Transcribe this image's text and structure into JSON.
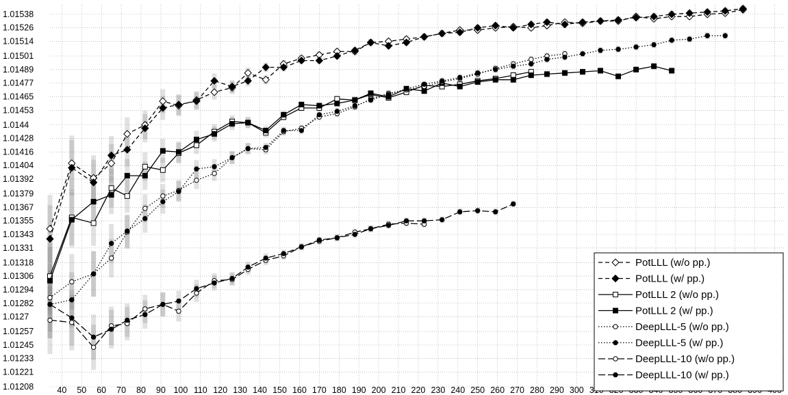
{
  "chart_data": {
    "type": "line",
    "title": "",
    "xlabel": "",
    "ylabel": "",
    "grid": true,
    "legend_position": "bottom-right",
    "x_ticks": [
      40,
      50,
      60,
      70,
      80,
      90,
      100,
      110,
      120,
      130,
      140,
      150,
      160,
      170,
      180,
      190,
      200,
      210,
      220,
      230,
      240,
      250,
      260,
      270,
      280,
      290,
      300,
      310,
      320,
      330,
      340,
      350,
      360,
      370,
      380,
      390,
      400
    ],
    "y_ticks": [
      "1.01208",
      "1.01221",
      "1.01233",
      "1.01245",
      "1.01257",
      "1.0127",
      "1.01282",
      "1.01294",
      "1.01306",
      "1.01318",
      "1.01331",
      "1.01343",
      "1.01355",
      "1.01367",
      "1.01379",
      "1.01392",
      "1.01404",
      "1.01416",
      "1.01428",
      "1.0144",
      "1.01453",
      "1.01465",
      "1.01477",
      "1.01489",
      "1.01501",
      "1.01514",
      "1.01526",
      "1.01538"
    ],
    "xlim": [
      34,
      405
    ],
    "ylim": [
      1.01208,
      1.01547
    ],
    "series": [
      {
        "name": "PotLLL (w/o pp.)",
        "dash": "6,4",
        "marker": "diamond-open",
        "points": [
          [
            34,
            1.01348
          ],
          [
            45,
            1.01406
          ],
          [
            56,
            1.01393
          ],
          [
            65,
            1.01406
          ],
          [
            73,
            1.01432
          ],
          [
            82,
            1.0144
          ],
          [
            91,
            1.01461
          ],
          [
            99,
            1.01457
          ],
          [
            108,
            1.01462
          ],
          [
            117,
            1.01469
          ],
          [
            126,
            1.01473
          ],
          [
            134,
            1.01486
          ],
          [
            143,
            1.0148
          ],
          [
            152,
            1.01494
          ],
          [
            161,
            1.01499
          ],
          [
            170,
            1.01502
          ],
          [
            179,
            1.01505
          ],
          [
            188,
            1.01505
          ],
          [
            196,
            1.01513
          ],
          [
            205,
            1.01514
          ],
          [
            214,
            1.01516
          ],
          [
            223,
            1.01518
          ],
          [
            232,
            1.01521
          ],
          [
            241,
            1.01524
          ],
          [
            250,
            1.01524
          ],
          [
            259,
            1.01526
          ],
          [
            268,
            1.01527
          ],
          [
            277,
            1.01526
          ],
          [
            285,
            1.01528
          ],
          [
            294,
            1.01531
          ],
          [
            303,
            1.0153
          ],
          [
            312,
            1.01532
          ],
          [
            321,
            1.01532
          ],
          [
            330,
            1.01536
          ],
          [
            339,
            1.01534
          ],
          [
            348,
            1.01536
          ],
          [
            357,
            1.01536
          ],
          [
            366,
            1.01538
          ],
          [
            375,
            1.01539
          ],
          [
            384,
            1.01542
          ]
        ]
      },
      {
        "name": "PotLLL (w/ pp.)",
        "dash": "6,4",
        "marker": "diamond",
        "points": [
          [
            34,
            1.01339
          ],
          [
            45,
            1.01402
          ],
          [
            56,
            1.01389
          ],
          [
            65,
            1.01413
          ],
          [
            73,
            1.01418
          ],
          [
            82,
            1.01437
          ],
          [
            91,
            1.01455
          ],
          [
            99,
            1.01458
          ],
          [
            108,
            1.01461
          ],
          [
            117,
            1.01479
          ],
          [
            126,
            1.01474
          ],
          [
            134,
            1.01479
          ],
          [
            143,
            1.01491
          ],
          [
            152,
            1.01491
          ],
          [
            161,
            1.01497
          ],
          [
            170,
            1.01497
          ],
          [
            179,
            1.01501
          ],
          [
            188,
            1.01506
          ],
          [
            196,
            1.01513
          ],
          [
            205,
            1.0151
          ],
          [
            214,
            1.01513
          ],
          [
            223,
            1.01518
          ],
          [
            232,
            1.01521
          ],
          [
            241,
            1.01522
          ],
          [
            250,
            1.01526
          ],
          [
            259,
            1.01528
          ],
          [
            268,
            1.01526
          ],
          [
            277,
            1.01529
          ],
          [
            285,
            1.01531
          ],
          [
            294,
            1.01529
          ],
          [
            303,
            1.01531
          ],
          [
            312,
            1.01532
          ],
          [
            321,
            1.01533
          ],
          [
            330,
            1.01535
          ],
          [
            339,
            1.01536
          ],
          [
            348,
            1.01538
          ],
          [
            357,
            1.01539
          ],
          [
            366,
            1.0154
          ],
          [
            375,
            1.01541
          ],
          [
            384,
            1.01543
          ]
        ]
      },
      {
        "name": "PotLLL 2 (w/o pp.)",
        "dash": "",
        "marker": "square-open",
        "points": [
          [
            34,
            1.01306
          ],
          [
            45,
            1.01358
          ],
          [
            56,
            1.01353
          ],
          [
            65,
            1.01384
          ],
          [
            73,
            1.01377
          ],
          [
            82,
            1.01403
          ],
          [
            91,
            1.014
          ],
          [
            99,
            1.01415
          ],
          [
            108,
            1.01422
          ],
          [
            117,
            1.01434
          ],
          [
            126,
            1.01443
          ],
          [
            134,
            1.01442
          ],
          [
            143,
            1.01433
          ],
          [
            152,
            1.01447
          ],
          [
            161,
            1.01455
          ],
          [
            170,
            1.01455
          ],
          [
            179,
            1.01463
          ],
          [
            188,
            1.01462
          ],
          [
            196,
            1.01467
          ],
          [
            205,
            1.01464
          ],
          [
            214,
            1.01469
          ],
          [
            223,
            1.01475
          ],
          [
            232,
            1.01474
          ],
          [
            241,
            1.01476
          ],
          [
            250,
            1.01479
          ],
          [
            259,
            1.01481
          ],
          [
            268,
            1.01484
          ],
          [
            277,
            1.01487
          ]
        ]
      },
      {
        "name": "PotLLL 2 (w/ pp.)",
        "dash": "",
        "marker": "square",
        "points": [
          [
            34,
            1.01302
          ],
          [
            45,
            1.01356
          ],
          [
            56,
            1.01372
          ],
          [
            65,
            1.01378
          ],
          [
            73,
            1.01395
          ],
          [
            82,
            1.01395
          ],
          [
            91,
            1.01417
          ],
          [
            99,
            1.01416
          ],
          [
            108,
            1.01427
          ],
          [
            117,
            1.01432
          ],
          [
            126,
            1.01441
          ],
          [
            134,
            1.01442
          ],
          [
            143,
            1.01435
          ],
          [
            152,
            1.01449
          ],
          [
            161,
            1.01458
          ],
          [
            170,
            1.01457
          ],
          [
            179,
            1.01459
          ],
          [
            188,
            1.01462
          ],
          [
            196,
            1.01468
          ],
          [
            205,
            1.01465
          ],
          [
            214,
            1.01472
          ],
          [
            223,
            1.0147
          ],
          [
            232,
            1.01477
          ],
          [
            241,
            1.01474
          ],
          [
            250,
            1.01478
          ],
          [
            259,
            1.0148
          ],
          [
            268,
            1.0148
          ],
          [
            277,
            1.01484
          ],
          [
            285,
            1.01485
          ],
          [
            294,
            1.01486
          ],
          [
            303,
            1.01487
          ],
          [
            312,
            1.01488
          ],
          [
            321,
            1.01483
          ],
          [
            330,
            1.01489
          ],
          [
            339,
            1.01492
          ],
          [
            348,
            1.01488
          ]
        ]
      },
      {
        "name": "DeepLLL-5 (w/o pp.)",
        "dash": "1.5,2.5",
        "marker": "circle-open",
        "points": [
          [
            34,
            1.01287
          ],
          [
            45,
            1.01301
          ],
          [
            56,
            1.01308
          ],
          [
            65,
            1.01322
          ],
          [
            73,
            1.01345
          ],
          [
            82,
            1.01366
          ],
          [
            91,
            1.01377
          ],
          [
            99,
            1.01382
          ],
          [
            108,
            1.01391
          ],
          [
            117,
            1.01397
          ],
          [
            126,
            1.01411
          ],
          [
            134,
            1.01419
          ],
          [
            143,
            1.01418
          ],
          [
            152,
            1.01434
          ],
          [
            161,
            1.01437
          ],
          [
            170,
            1.01447
          ],
          [
            179,
            1.0145
          ],
          [
            188,
            1.01456
          ],
          [
            196,
            1.01463
          ],
          [
            205,
            1.01468
          ],
          [
            214,
            1.01471
          ],
          [
            223,
            1.01474
          ],
          [
            232,
            1.01478
          ],
          [
            241,
            1.01481
          ],
          [
            250,
            1.01485
          ],
          [
            259,
            1.0149
          ],
          [
            268,
            1.01494
          ],
          [
            277,
            1.01498
          ],
          [
            285,
            1.01501
          ],
          [
            294,
            1.01503
          ]
        ]
      },
      {
        "name": "DeepLLL-5 (w/ pp.)",
        "dash": "1.5,2.5",
        "marker": "circle",
        "points": [
          [
            34,
            1.01281
          ],
          [
            45,
            1.01285
          ],
          [
            56,
            1.01308
          ],
          [
            65,
            1.01335
          ],
          [
            73,
            1.01346
          ],
          [
            82,
            1.01357
          ],
          [
            91,
            1.01372
          ],
          [
            99,
            1.01381
          ],
          [
            108,
            1.01401
          ],
          [
            117,
            1.01403
          ],
          [
            126,
            1.01411
          ],
          [
            134,
            1.01419
          ],
          [
            143,
            1.0142
          ],
          [
            152,
            1.01435
          ],
          [
            161,
            1.01435
          ],
          [
            170,
            1.01449
          ],
          [
            179,
            1.01452
          ],
          [
            188,
            1.01457
          ],
          [
            196,
            1.01462
          ],
          [
            205,
            1.01467
          ],
          [
            214,
            1.01472
          ],
          [
            223,
            1.01476
          ],
          [
            232,
            1.01479
          ],
          [
            241,
            1.01482
          ],
          [
            250,
            1.01486
          ],
          [
            259,
            1.01489
          ],
          [
            268,
            1.01492
          ],
          [
            277,
            1.01494
          ],
          [
            285,
            1.01498
          ],
          [
            294,
            1.015
          ],
          [
            303,
            1.01503
          ],
          [
            312,
            1.01506
          ],
          [
            321,
            1.01507
          ],
          [
            330,
            1.01509
          ],
          [
            339,
            1.01511
          ],
          [
            348,
            1.01515
          ],
          [
            357,
            1.01516
          ],
          [
            366,
            1.01519
          ],
          [
            375,
            1.01519
          ]
        ]
      },
      {
        "name": "DeepLLL-10 (w/o pp.)",
        "dash": "10,4",
        "marker": "circle-open",
        "points": [
          [
            34,
            1.01267
          ],
          [
            45,
            1.01265
          ],
          [
            56,
            1.01243
          ],
          [
            65,
            1.01262
          ],
          [
            73,
            1.01264
          ],
          [
            82,
            1.01277
          ],
          [
            91,
            1.01281
          ],
          [
            99,
            1.01275
          ],
          [
            108,
            1.01291
          ],
          [
            117,
            1.01302
          ],
          [
            126,
            1.01303
          ],
          [
            134,
            1.01312
          ],
          [
            143,
            1.0132
          ],
          [
            152,
            1.01324
          ],
          [
            161,
            1.01332
          ],
          [
            170,
            1.01337
          ],
          [
            179,
            1.0134
          ],
          [
            188,
            1.01345
          ],
          [
            196,
            1.01348
          ],
          [
            205,
            1.01352
          ],
          [
            214,
            1.01353
          ],
          [
            223,
            1.01352
          ]
        ]
      },
      {
        "name": "DeepLLL-10 (w/ pp.)",
        "dash": "10,4",
        "marker": "circle",
        "points": [
          [
            34,
            1.01281
          ],
          [
            45,
            1.01269
          ],
          [
            56,
            1.01252
          ],
          [
            65,
            1.01259
          ],
          [
            73,
            1.01267
          ],
          [
            82,
            1.01272
          ],
          [
            91,
            1.01281
          ],
          [
            99,
            1.01284
          ],
          [
            108,
            1.01295
          ],
          [
            117,
            1.013
          ],
          [
            126,
            1.01304
          ],
          [
            134,
            1.01314
          ],
          [
            143,
            1.01322
          ],
          [
            152,
            1.01326
          ],
          [
            161,
            1.01332
          ],
          [
            170,
            1.01338
          ],
          [
            179,
            1.0134
          ],
          [
            188,
            1.01343
          ],
          [
            196,
            1.01348
          ],
          [
            205,
            1.01351
          ],
          [
            214,
            1.01355
          ],
          [
            223,
            1.01355
          ],
          [
            232,
            1.01356
          ],
          [
            241,
            1.01363
          ],
          [
            250,
            1.01364
          ],
          [
            259,
            1.01363
          ],
          [
            268,
            1.0137
          ]
        ]
      }
    ]
  }
}
